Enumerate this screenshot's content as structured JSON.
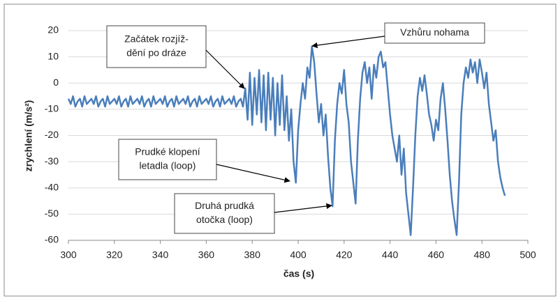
{
  "chart_data": {
    "type": "line",
    "x_label": "čas (s)",
    "y_label": "zrychlení (m/s²)",
    "xlim": [
      300,
      500
    ],
    "xticks": [
      300,
      320,
      340,
      360,
      380,
      400,
      420,
      440,
      460,
      480,
      500
    ],
    "ylim": [
      -60,
      20
    ],
    "yticks": [
      -60,
      -50,
      -40,
      -30,
      -20,
      -10,
      0,
      10,
      20
    ],
    "grid": true,
    "series": [
      {
        "color": "#4a7ebb",
        "x": [
          300,
          301,
          302,
          303,
          304,
          305,
          306,
          307,
          308,
          309,
          310,
          311,
          312,
          313,
          314,
          315,
          316,
          317,
          318,
          319,
          320,
          321,
          322,
          323,
          324,
          325,
          326,
          327,
          328,
          329,
          330,
          331,
          332,
          333,
          334,
          335,
          336,
          337,
          338,
          339,
          340,
          341,
          342,
          343,
          344,
          345,
          346,
          347,
          348,
          349,
          350,
          351,
          352,
          353,
          354,
          355,
          356,
          357,
          358,
          359,
          360,
          361,
          362,
          363,
          364,
          365,
          366,
          367,
          368,
          369,
          370,
          371,
          372,
          373,
          374,
          375,
          376,
          377,
          378,
          379,
          380,
          381,
          382,
          383,
          384,
          385,
          386,
          387,
          388,
          389,
          390,
          391,
          392,
          393,
          394,
          395,
          396,
          397,
          398,
          399,
          400,
          401,
          402,
          403,
          404,
          405,
          406,
          407,
          408,
          409,
          410,
          411,
          412,
          413,
          414,
          415,
          416,
          417,
          418,
          419,
          420,
          421,
          422,
          423,
          424,
          425,
          426,
          427,
          428,
          429,
          430,
          431,
          432,
          433,
          434,
          435,
          436,
          437,
          438,
          439,
          440,
          441,
          442,
          443,
          444,
          445,
          446,
          447,
          448,
          449,
          450,
          451,
          452,
          453,
          454,
          455,
          456,
          457,
          458,
          459,
          460,
          461,
          462,
          463,
          464,
          465,
          466,
          467,
          468,
          469,
          470,
          471,
          472,
          473,
          474,
          475,
          476,
          477,
          478,
          479,
          480,
          481,
          482,
          483,
          484,
          485,
          486,
          487,
          488,
          489,
          490
        ],
        "values": [
          -6,
          -8,
          -5,
          -9,
          -7,
          -6,
          -9,
          -5,
          -8,
          -7,
          -6,
          -8,
          -5,
          -9,
          -7,
          -6,
          -9,
          -5,
          -8,
          -7,
          -6,
          -8,
          -5,
          -9,
          -7,
          -6,
          -9,
          -5,
          -8,
          -7,
          -6,
          -8,
          -5,
          -9,
          -7,
          -6,
          -9,
          -5,
          -8,
          -7,
          -6,
          -8,
          -5,
          -9,
          -7,
          -6,
          -9,
          -5,
          -8,
          -7,
          -6,
          -8,
          -5,
          -9,
          -7,
          -6,
          -9,
          -5,
          -8,
          -7,
          -6,
          -8,
          -5,
          -9,
          -7,
          -6,
          -9,
          -5,
          -8,
          -7,
          -6,
          -8,
          -5,
          -9,
          -7,
          -6,
          -9,
          -2,
          -14,
          4,
          -16,
          2,
          -12,
          5,
          -15,
          3,
          -18,
          4,
          -14,
          2,
          -20,
          0,
          -16,
          3,
          -18,
          -5,
          -22,
          -10,
          -30,
          -38,
          -18,
          -8,
          0,
          -6,
          6,
          2,
          14,
          8,
          -4,
          -15,
          -8,
          -20,
          -12,
          -28,
          -40,
          -47,
          -22,
          -8,
          0,
          -4,
          5,
          -8,
          -15,
          -30,
          -38,
          -46,
          -22,
          -6,
          4,
          8,
          0,
          6,
          -6,
          7,
          2,
          10,
          12,
          6,
          8,
          -2,
          -12,
          -20,
          -25,
          -30,
          -20,
          -35,
          -25,
          -42,
          -50,
          -58,
          -40,
          -20,
          -5,
          2,
          -3,
          3,
          -4,
          -12,
          -16,
          -22,
          -14,
          -18,
          -6,
          0,
          -10,
          -22,
          -35,
          -45,
          -52,
          -58,
          -38,
          -12,
          0,
          6,
          2,
          9,
          4,
          8,
          0,
          9,
          4,
          -2,
          4,
          -8,
          -15,
          -22,
          -18,
          -30,
          -36,
          -40,
          -43
        ]
      }
    ],
    "annotations": [
      {
        "lines": [
          "Začátek rozjíž-",
          "dění po dráze"
        ]
      },
      {
        "lines": [
          "Vzhůru nohama"
        ]
      },
      {
        "lines": [
          "Prudké klopení",
          "letadla (loop)"
        ]
      },
      {
        "lines": [
          "Druhá prudká",
          "otočka (loop)"
        ]
      }
    ]
  }
}
